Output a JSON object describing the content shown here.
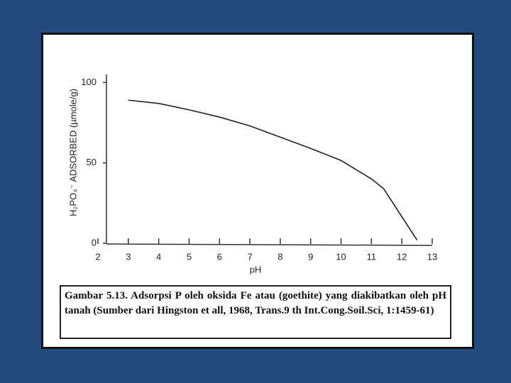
{
  "chart_data": {
    "type": "line",
    "x_label": "pH",
    "y_label": "H₂PO₄⁻ ADSORBED (µmole/g)",
    "x": [
      3,
      4,
      5,
      6,
      7,
      8,
      9,
      10,
      11,
      11.4,
      12.5
    ],
    "values": [
      89,
      87,
      83,
      78.5,
      73,
      66,
      59,
      51.5,
      40,
      34,
      2
    ],
    "color": "#222222",
    "xlim": [
      2,
      13
    ],
    "xticks": [
      2,
      3,
      4,
      5,
      6,
      7,
      8,
      9,
      10,
      11,
      12,
      13
    ],
    "ylim": [
      0,
      105
    ],
    "yticks": [
      0,
      50,
      100
    ]
  },
  "caption": "Gambar 5.13. Adsorpsi P oleh oksida Fe atau (goethite) yang diakibatkan oleh pH tanah (Sumber dari Hingston et all, 1968, Trans.9 th Int.Cong.Soil.Sci, 1:1459-61)"
}
